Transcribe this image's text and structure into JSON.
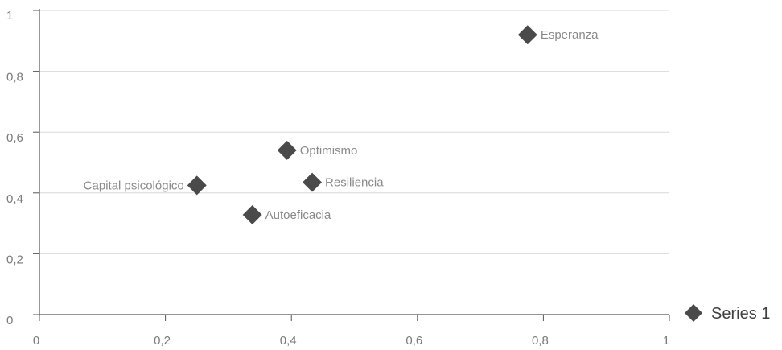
{
  "chart_data": {
    "type": "scatter",
    "xlim": [
      0,
      1
    ],
    "ylim": [
      0,
      1
    ],
    "x_ticks": [
      0,
      0.2,
      0.4,
      0.6,
      0.8,
      1
    ],
    "y_ticks": [
      0,
      0.2,
      0.4,
      0.6,
      0.8,
      1
    ],
    "x_tick_labels": [
      "0",
      "0,2",
      "0,4",
      "0,6",
      "0,8",
      "1"
    ],
    "y_tick_labels": [
      "0",
      "0,2",
      "0,4",
      "0,6",
      "0,8",
      "1"
    ],
    "grid": "horizontal",
    "legend": {
      "position": "right-bottom",
      "entries": [
        "Series 1"
      ]
    },
    "marker_color": "#4a4a4a",
    "series": [
      {
        "name": "Series 1",
        "points": [
          {
            "label": "Esperanza",
            "x": 0.775,
            "y": 0.92,
            "label_side": "right"
          },
          {
            "label": "Optimismo",
            "x": 0.393,
            "y": 0.54,
            "label_side": "right"
          },
          {
            "label": "Resiliencia",
            "x": 0.433,
            "y": 0.435,
            "label_side": "right"
          },
          {
            "label": "Capital psicológico",
            "x": 0.25,
            "y": 0.425,
            "label_side": "left"
          },
          {
            "label": "Autoeficacia",
            "x": 0.338,
            "y": 0.328,
            "label_side": "right"
          }
        ]
      }
    ]
  }
}
